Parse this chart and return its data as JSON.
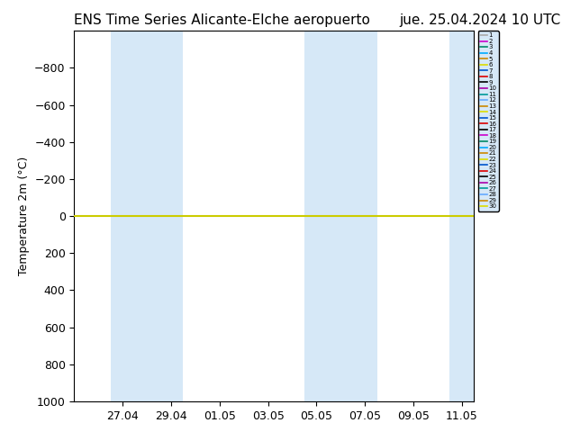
{
  "title_left": "ENS Time Series Alicante-Elche aeropuerto",
  "title_right": "jue. 25.04.2024 10 UTC",
  "ylabel": "Temperature 2m (°C)",
  "ylim": [
    -1000,
    1000
  ],
  "yticks": [
    -800,
    -600,
    -400,
    -200,
    0,
    200,
    400,
    600,
    800,
    1000
  ],
  "xtick_labels": [
    "27.04",
    "29.04",
    "01.05",
    "03.05",
    "05.05",
    "07.05",
    "09.05",
    "11.05"
  ],
  "shaded_color": "#d6e8f7",
  "line_colors": [
    "#aaaaaa",
    "#cc00cc",
    "#008866",
    "#00aaff",
    "#cc8800",
    "#dddd00",
    "#0055cc",
    "#dd0000",
    "#000000",
    "#aa00aa",
    "#009999",
    "#66aaff",
    "#cc8800",
    "#dddd00",
    "#0055cc",
    "#dd0000",
    "#000000",
    "#cc00cc",
    "#008866",
    "#00aaff",
    "#cc8800",
    "#dddd00",
    "#0055cc",
    "#dd0000",
    "#000000",
    "#aa00aa",
    "#009999",
    "#66aaff",
    "#cc8800",
    "#dddd00"
  ],
  "member_count": 30,
  "zero_line_color": "#cccc00",
  "background_color": "#ffffff",
  "plot_bg_color": "#ffffff",
  "title_fontsize": 11,
  "axis_fontsize": 9,
  "legend_fontsize": 5
}
